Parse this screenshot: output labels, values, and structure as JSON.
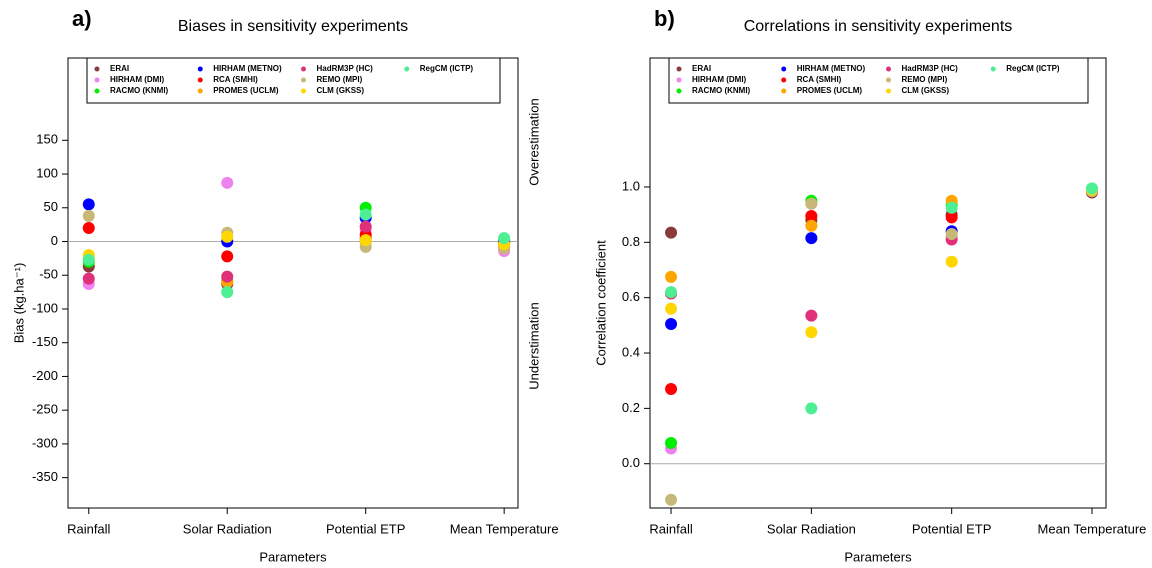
{
  "chart_data": [
    {
      "type": "dot",
      "panel_label": "a)",
      "title": "Biases in sensitivity experiments",
      "x_label": "Parameters",
      "y_label": "Bias  (kg.ha⁻¹)",
      "annotations": [
        "Overestimation",
        "Understimation"
      ],
      "categories": [
        "Rainfall",
        "Solar Radiation",
        "Potential ETP",
        "Mean Temperature"
      ],
      "ylim": [
        -395,
        272
      ],
      "yticks": [
        150,
        100,
        50,
        0,
        -50,
        -100,
        -150,
        -200,
        -250,
        -300,
        -350
      ],
      "reference_line": 0,
      "legend": "top",
      "series": [
        {
          "name": "ERAI",
          "color": "#8b3a3a",
          "values": [
            -37,
            -63,
            5,
            -3
          ]
        },
        {
          "name": "HIRHAM (DMI)",
          "color": "#ee82ee",
          "values": [
            -63,
            87,
            18,
            -14
          ]
        },
        {
          "name": "RACMO (KNMI)",
          "color": "#00ee00",
          "values": [
            -30,
            -58,
            50,
            3
          ]
        },
        {
          "name": "HIRHAM (METNO)",
          "color": "#0000ff",
          "values": [
            55,
            0,
            35,
            0
          ]
        },
        {
          "name": "RCA (SMHI)",
          "color": "#ff0000",
          "values": [
            20,
            -22,
            10,
            -2
          ]
        },
        {
          "name": "PROMES (UCLM)",
          "color": "#ffa500",
          "values": [
            -25,
            -60,
            0,
            -5
          ]
        },
        {
          "name": "HadRM3P (HC)",
          "color": "#e0307a",
          "values": [
            -55,
            -52,
            22,
            -8
          ]
        },
        {
          "name": "REMO (MPI)",
          "color": "#c8b878",
          "values": [
            38,
            13,
            -8,
            -10
          ]
        },
        {
          "name": "CLM (GKSS)",
          "color": "#ffd700",
          "values": [
            -20,
            7,
            2,
            -4
          ]
        },
        {
          "name": "RegCM (ICTP)",
          "color": "#4eee94",
          "values": [
            -27,
            -75,
            40,
            5
          ]
        }
      ]
    },
    {
      "type": "dot",
      "panel_label": "b)",
      "title": "Correlations in sensitivity experiments",
      "x_label": "Parameters",
      "y_label": "Correlation coefficient",
      "categories": [
        "Rainfall",
        "Solar Radiation",
        "Potential ETP",
        "Mean Temperature"
      ],
      "ylim": [
        -0.16,
        1.466
      ],
      "yticks": [
        {
          "value": 0,
          "label": "0.0"
        },
        0.2,
        0.4,
        0.6,
        0.8,
        {
          "value": 1,
          "label": "1.0"
        }
      ],
      "reference_line": 0,
      "legend": "top",
      "series": [
        {
          "name": "ERAI",
          "color": "#8b3a3a",
          "values": [
            0.835,
            0.88,
            0.9,
            0.98
          ]
        },
        {
          "name": "HIRHAM (DMI)",
          "color": "#ee82ee",
          "values": [
            0.055,
            0.94,
            0.82,
            0.985
          ]
        },
        {
          "name": "RACMO (KNMI)",
          "color": "#00ee00",
          "values": [
            0.075,
            0.95,
            0.935,
            0.99
          ]
        },
        {
          "name": "HIRHAM (METNO)",
          "color": "#0000ff",
          "values": [
            0.505,
            0.815,
            0.84,
            0.99
          ]
        },
        {
          "name": "RCA (SMHI)",
          "color": "#ff0000",
          "values": [
            0.27,
            0.895,
            0.89,
            0.985
          ]
        },
        {
          "name": "PROMES (UCLM)",
          "color": "#ffa500",
          "values": [
            0.675,
            0.86,
            0.95,
            0.99
          ]
        },
        {
          "name": "HadRM3P (HC)",
          "color": "#e0307a",
          "values": [
            0.615,
            0.535,
            0.81,
            0.985
          ]
        },
        {
          "name": "REMO (MPI)",
          "color": "#c8b878",
          "values": [
            -0.13,
            0.94,
            0.83,
            0.985
          ]
        },
        {
          "name": "CLM (GKSS)",
          "color": "#ffd700",
          "values": [
            0.56,
            0.475,
            0.73,
            0.99
          ]
        },
        {
          "name": "RegCM (ICTP)",
          "color": "#4eee94",
          "values": [
            0.62,
            0.2,
            0.925,
            0.995
          ]
        }
      ]
    }
  ]
}
